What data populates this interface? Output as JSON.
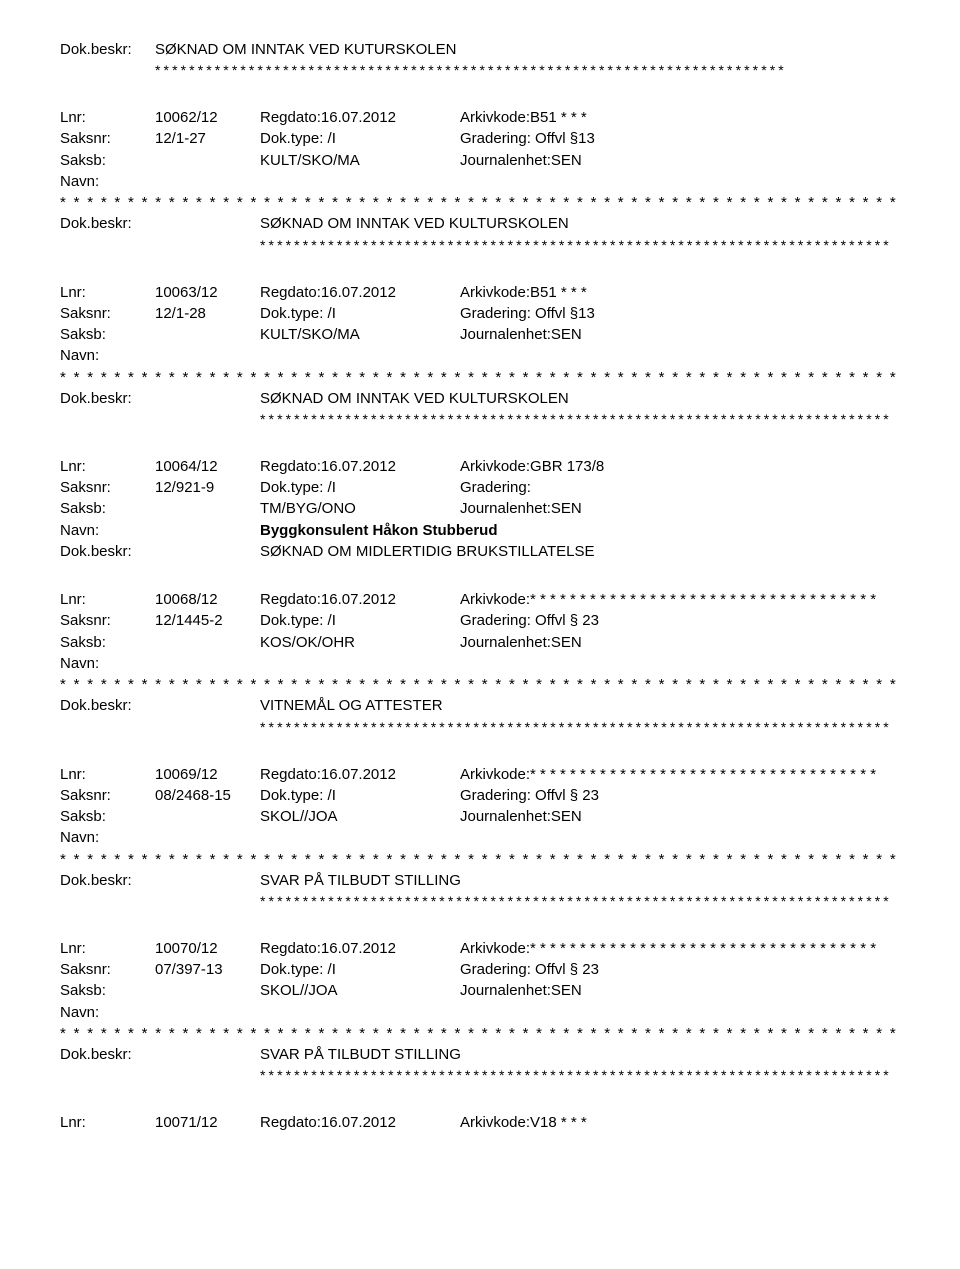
{
  "labels": {
    "lnr": "Lnr:",
    "regdato": "Regdato:",
    "arkivkode": "Arkivkode:",
    "saksnr": "Saksnr:",
    "doktype": "Dok.type:",
    "gradering": "Gradering:",
    "saksb": "Saksb:",
    "journalenhet": "Journalenhet:",
    "navn": "Navn:",
    "dokbeskr": "Dok.beskr:"
  },
  "stars": {
    "short": "* * * * * * * * * * * * * * * * * * * * * * * * * * * * * * * * * * * * * * * * * * * * * * * * * * * * * * * * * * * * * *",
    "long": "* * * * * * * * * * * * * * * * * * * * * * * * * * * * * * * * * * * * * * * * * * * * * * * * * * * * * * * * * * * * * * * * * * * * * * * * * *",
    "arkiv_suffix": "* * * * * * * * * * * * * * * * * * * * * * * * * * * * * *"
  },
  "entries": [
    {
      "type": "desc_only",
      "dokbeskr": "SØKNAD OM INNTAK VED KUTURSKOLEN"
    },
    {
      "type": "full",
      "lnr": "10062/12",
      "regdato": "16.07.2012",
      "arkivkode": "B51 * * *",
      "saksnr": "12/1-27",
      "doktype": "/I",
      "gradering": "Offvl §13",
      "saksb": "KULT/SKO/MA",
      "journalenhet": "SEN",
      "navn": "",
      "show_navn_stars": true,
      "dokbeskr": "SØKNAD OM INNTAK VED KULTURSKOLEN",
      "show_long_stars": true
    },
    {
      "type": "full",
      "lnr": "10063/12",
      "regdato": "16.07.2012",
      "arkivkode": "B51 * * *",
      "saksnr": "12/1-28",
      "doktype": "/I",
      "gradering": "Offvl §13",
      "saksb": "KULT/SKO/MA",
      "journalenhet": "SEN",
      "navn": "",
      "show_navn_stars": true,
      "dokbeskr": "SØKNAD OM INNTAK VED KULTURSKOLEN",
      "show_long_stars": true
    },
    {
      "type": "full",
      "lnr": "10064/12",
      "regdato": "16.07.2012",
      "arkivkode": "GBR 173/8",
      "saksnr": "12/921-9",
      "doktype": "/I",
      "gradering": "",
      "saksb": "TM/BYG/ONO",
      "journalenhet": "SEN",
      "navn": "Byggkonsulent Håkon Stubberud",
      "navn_bold": true,
      "show_navn_stars": false,
      "dokbeskr": "SØKNAD OM MIDLERTIDIG BRUKSTILLATELSE",
      "show_long_stars": false
    },
    {
      "type": "full",
      "lnr": "10068/12",
      "regdato": "16.07.2012",
      "arkivkode": "* * * * *",
      "arkivkode_extra": true,
      "saksnr": "12/1445-2",
      "doktype": "/I",
      "gradering": "Offvl § 23",
      "saksb": "KOS/OK/OHR",
      "journalenhet": "SEN",
      "navn": "",
      "show_navn_stars": true,
      "dokbeskr": "VITNEMÅL OG ATTESTER",
      "show_long_stars": true
    },
    {
      "type": "full",
      "lnr": "10069/12",
      "regdato": "16.07.2012",
      "arkivkode": "* * * * *",
      "arkivkode_extra": true,
      "saksnr": "08/2468-15",
      "doktype": "/I",
      "gradering": "Offvl § 23",
      "saksb": "SKOL//JOA",
      "journalenhet": "SEN",
      "navn": "",
      "show_navn_stars": true,
      "dokbeskr": "SVAR PÅ TILBUDT STILLING",
      "show_long_stars": true
    },
    {
      "type": "full",
      "lnr": "10070/12",
      "regdato": "16.07.2012",
      "arkivkode": "* * * * *",
      "arkivkode_extra": true,
      "saksnr": "07/397-13",
      "doktype": "/I",
      "gradering": "Offvl § 23",
      "saksb": "SKOL//JOA",
      "journalenhet": "SEN",
      "navn": "",
      "show_navn_stars": true,
      "dokbeskr": "SVAR PÅ TILBUDT STILLING",
      "show_long_stars": true
    },
    {
      "type": "header_only",
      "lnr": "10071/12",
      "regdato": "16.07.2012",
      "arkivkode": "V18 * * *"
    }
  ]
}
